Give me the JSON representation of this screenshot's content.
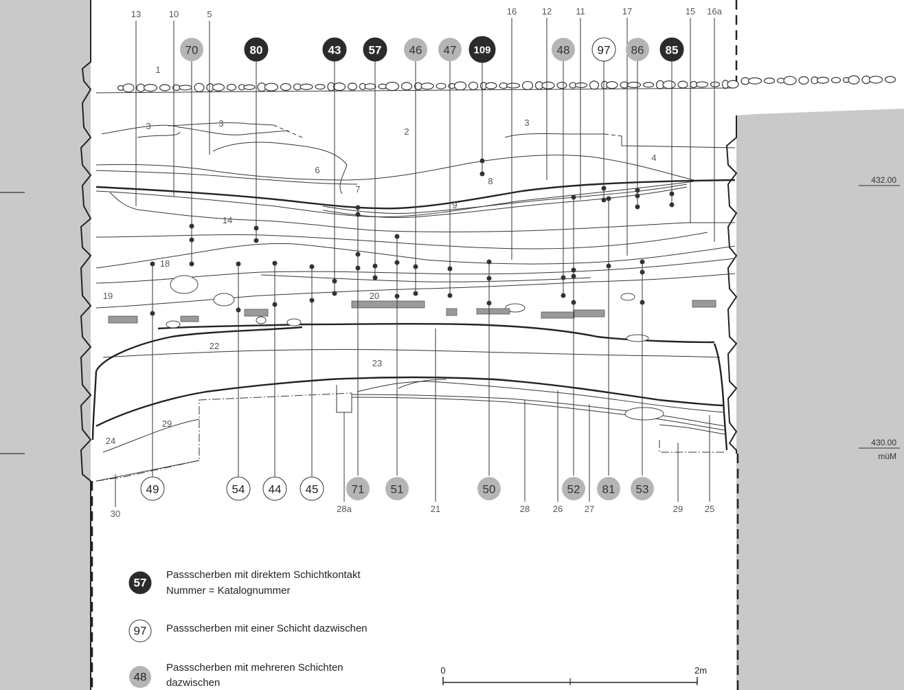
{
  "profile": {
    "top_layer_numbers": [
      "13",
      "10",
      "5",
      "16",
      "12",
      "11",
      "17",
      "15",
      "16a"
    ],
    "layer_numbers": [
      "1",
      "3",
      "3",
      "2",
      "3",
      "4",
      "6",
      "7",
      "8",
      "9",
      "14",
      "18",
      "19",
      "20",
      "22",
      "23",
      "24",
      "29"
    ],
    "bottom_layer_numbers": [
      "30",
      "28a",
      "21",
      "28",
      "26",
      "27",
      "29",
      "25"
    ],
    "elevations": [
      "432.00",
      "430.00"
    ],
    "elevation_unit": "müM"
  },
  "badges_top": [
    {
      "num": "70",
      "type": "several"
    },
    {
      "num": "80",
      "type": "direct"
    },
    {
      "num": "43",
      "type": "direct"
    },
    {
      "num": "57",
      "type": "direct"
    },
    {
      "num": "46",
      "type": "several"
    },
    {
      "num": "47",
      "type": "several"
    },
    {
      "num": "109",
      "type": "direct"
    },
    {
      "num": "48",
      "type": "several"
    },
    {
      "num": "97",
      "type": "one"
    },
    {
      "num": "86",
      "type": "several"
    },
    {
      "num": "85",
      "type": "direct"
    }
  ],
  "badges_bottom": [
    {
      "num": "49",
      "type": "one"
    },
    {
      "num": "54",
      "type": "one"
    },
    {
      "num": "44",
      "type": "one"
    },
    {
      "num": "45",
      "type": "one"
    },
    {
      "num": "71",
      "type": "several"
    },
    {
      "num": "51",
      "type": "several"
    },
    {
      "num": "50",
      "type": "several"
    },
    {
      "num": "52",
      "type": "several"
    },
    {
      "num": "81",
      "type": "several"
    },
    {
      "num": "53",
      "type": "several"
    }
  ],
  "legend": [
    {
      "num": "57",
      "type": "direct",
      "line1": "Passscherben mit direktem Schichtkontakt",
      "line2": "Nummer = Katalognummer"
    },
    {
      "num": "97",
      "type": "one",
      "line1": "Passscherben mit einer Schicht dazwischen",
      "line2": ""
    },
    {
      "num": "48",
      "type": "several",
      "line1": "Passscherben mit mehreren Schichten",
      "line2": "dazwischen"
    }
  ],
  "scale": {
    "start": "0",
    "end": "2m"
  },
  "colors": {
    "direct": "#2b2b2b",
    "one": "#ffffff",
    "several": "#b5b5b5",
    "sidebar": "#c9c9c9",
    "stones": "#9a9a9a"
  }
}
